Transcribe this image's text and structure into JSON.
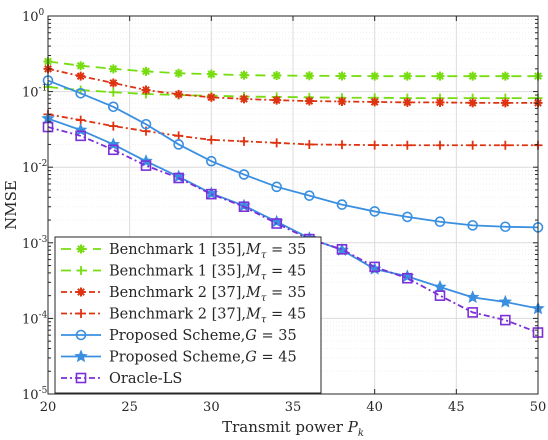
{
  "chart_data": {
    "type": "line",
    "xlabel": "Transmit power",
    "xlabel_symbol": "P",
    "xlabel_subscript": "k",
    "ylabel": "NMSE",
    "xlim": [
      20,
      50
    ],
    "ylim": [
      1e-05,
      1
    ],
    "yscale": "log",
    "grid": true,
    "legend_position": "bottom-left",
    "x_ticks": [
      {
        "value": 20,
        "label": "20"
      },
      {
        "value": 25,
        "label": "25"
      },
      {
        "value": 30,
        "label": "30"
      },
      {
        "value": 35,
        "label": "35"
      },
      {
        "value": 40,
        "label": "40"
      },
      {
        "value": 45,
        "label": "45"
      },
      {
        "value": 50,
        "label": "50"
      }
    ],
    "y_ticks": [
      {
        "value": 1,
        "base": "10",
        "exp": "0"
      },
      {
        "value": 0.1,
        "base": "10",
        "exp": "-1"
      },
      {
        "value": 0.01,
        "base": "10",
        "exp": "-2"
      },
      {
        "value": 0.001,
        "base": "10",
        "exp": "-3"
      },
      {
        "value": 0.0001,
        "base": "10",
        "exp": "-4"
      },
      {
        "value": 1e-05,
        "base": "10",
        "exp": "-5"
      }
    ],
    "series": [
      {
        "name": "Benchmark 1 [35],",
        "name_math": "M",
        "name_sub": "τ",
        "name_rest": " = 35",
        "color": "#77dd11",
        "dash": "10,6",
        "marker": "asterisk",
        "x": [
          20,
          22,
          24,
          26,
          28,
          30,
          32,
          34,
          36,
          38,
          40,
          42,
          44,
          46,
          48,
          50
        ],
        "values": [
          0.25,
          0.22,
          0.2,
          0.185,
          0.175,
          0.17,
          0.165,
          0.163,
          0.162,
          0.161,
          0.16,
          0.16,
          0.16,
          0.16,
          0.16,
          0.16
        ]
      },
      {
        "name": "Benchmark 1 [35],",
        "name_math": "M",
        "name_sub": "τ",
        "name_rest": " = 45",
        "color": "#77dd11",
        "dash": "10,6",
        "marker": "plus",
        "x": [
          20,
          22,
          24,
          26,
          28,
          30,
          32,
          34,
          36,
          38,
          40,
          42,
          44,
          46,
          48,
          50
        ],
        "values": [
          0.115,
          0.105,
          0.098,
          0.093,
          0.09,
          0.088,
          0.086,
          0.085,
          0.084,
          0.083,
          0.083,
          0.082,
          0.082,
          0.082,
          0.082,
          0.082
        ]
      },
      {
        "name": "Benchmark 2 [37],",
        "name_math": "M",
        "name_sub": "τ",
        "name_rest": " = 35",
        "color": "#dd3311",
        "dash": "6,3,2,3",
        "marker": "asterisk",
        "x": [
          20,
          22,
          24,
          26,
          28,
          30,
          32,
          34,
          36,
          38,
          40,
          42,
          44,
          46,
          48,
          50
        ],
        "values": [
          0.2,
          0.16,
          0.13,
          0.105,
          0.092,
          0.084,
          0.08,
          0.077,
          0.075,
          0.074,
          0.073,
          0.072,
          0.072,
          0.071,
          0.071,
          0.071
        ]
      },
      {
        "name": "Benchmark 2 [37],",
        "name_math": "M",
        "name_sub": "τ",
        "name_rest": " = 45",
        "color": "#dd3311",
        "dash": "6,3,2,3",
        "marker": "plus",
        "x": [
          20,
          22,
          24,
          26,
          28,
          30,
          32,
          34,
          36,
          38,
          40,
          42,
          44,
          46,
          48,
          50
        ],
        "values": [
          0.05,
          0.042,
          0.035,
          0.03,
          0.026,
          0.023,
          0.022,
          0.021,
          0.02,
          0.0198,
          0.0196,
          0.0195,
          0.0195,
          0.0195,
          0.0195,
          0.0195
        ]
      },
      {
        "name": "Proposed Scheme,",
        "name_math": "G",
        "name_sub": "",
        "name_rest": " = 35",
        "color": "#3a8fe0",
        "dash": "",
        "marker": "circle",
        "x": [
          20,
          22,
          24,
          26,
          28,
          30,
          32,
          34,
          36,
          38,
          40,
          42,
          44,
          46,
          48,
          50
        ],
        "values": [
          0.14,
          0.095,
          0.063,
          0.037,
          0.02,
          0.012,
          0.008,
          0.0055,
          0.0042,
          0.0032,
          0.0026,
          0.0022,
          0.0019,
          0.0017,
          0.00163,
          0.0016
        ]
      },
      {
        "name": "Proposed Scheme,",
        "name_math": "G",
        "name_sub": "",
        "name_rest": " = 45",
        "color": "#3a8fe0",
        "dash": "",
        "marker": "star",
        "x": [
          20,
          22,
          24,
          26,
          28,
          30,
          32,
          34,
          36,
          38,
          40,
          42,
          44,
          46,
          48,
          50
        ],
        "values": [
          0.044,
          0.031,
          0.02,
          0.012,
          0.0075,
          0.0045,
          0.0031,
          0.0019,
          0.00115,
          0.0008,
          0.00045,
          0.00036,
          0.00026,
          0.00019,
          0.000165,
          0.000135
        ]
      },
      {
        "name": "Oracle-LS",
        "name_math": "",
        "name_sub": "",
        "name_rest": "",
        "color": "#7b2fd8",
        "dash": "6,3,2,3",
        "marker": "square",
        "x": [
          20,
          22,
          24,
          26,
          28,
          30,
          32,
          34,
          36,
          38,
          40,
          42,
          44,
          46,
          48,
          50
        ],
        "values": [
          0.034,
          0.026,
          0.017,
          0.0105,
          0.0072,
          0.0044,
          0.003,
          0.0018,
          0.00112,
          0.00082,
          0.00048,
          0.00034,
          0.0002,
          0.00012,
          9.5e-05,
          6.5e-05
        ]
      }
    ]
  }
}
